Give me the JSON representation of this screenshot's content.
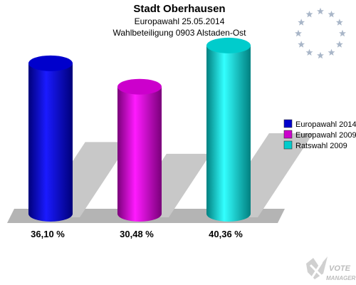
{
  "chart_data": {
    "type": "bar",
    "title": "Stadt Oberhausen",
    "subtitle": "Europawahl 25.05.2014",
    "subtitle2": "Wahlbeteiligung 0903 Alstaden-Ost",
    "categories": [
      "Europawahl 2014",
      "Europawahl 2009",
      "Ratswahl 2009"
    ],
    "values": [
      36.1,
      30.48,
      40.36
    ],
    "value_labels": [
      "36,10 %",
      "30,48 %",
      "40,36 %"
    ],
    "unit": "%",
    "ylim": [
      0,
      44
    ],
    "colors": [
      "#0000cc",
      "#cc00cc",
      "#00cccc"
    ],
    "legend": {
      "placement": "right",
      "entries": [
        "Europawahl 2014",
        "Europawahl 2009",
        "Ratswahl 2009"
      ]
    },
    "grid": false
  },
  "watermark": {
    "line1": "VOTE",
    "line2": "MANAGER"
  },
  "eu_stars": {
    "count": 12,
    "color": "#a9b6c8"
  }
}
